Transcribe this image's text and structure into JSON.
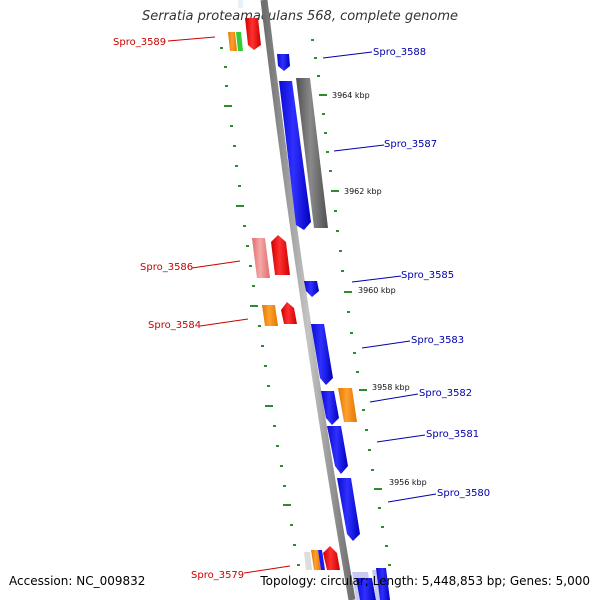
{
  "title": "Serratia proteamaculans 568, complete genome",
  "footer": {
    "accession": "Accession: NC_009832",
    "summary": "Topology: circular; Length: 5,448,853 bp; Genes: 5,000"
  },
  "colors": {
    "backbone": "#8c8c8c",
    "tick": "#2e8b2e",
    "reverse_label": "#cc0000",
    "forward_label": "#0000aa",
    "blue": "#1010ee",
    "red": "#ee1111",
    "pink": "#ee8888",
    "orange": "#ff8c00",
    "green": "#33cc33",
    "gray": "#6e6e6e",
    "lavender": "#c8c8f0"
  },
  "scale_labels": [
    {
      "text": "3964 kbp"
    },
    {
      "text": "3962 kbp"
    },
    {
      "text": "3960 kbp"
    },
    {
      "text": "3958 kbp"
    },
    {
      "text": "3956 kbp"
    }
  ],
  "gene_labels": [
    {
      "text": "Spro_3589",
      "strand": "reverse"
    },
    {
      "text": "Spro_3588",
      "strand": "forward"
    },
    {
      "text": "Spro_3587",
      "strand": "forward"
    },
    {
      "text": "Spro_3586",
      "strand": "reverse"
    },
    {
      "text": "Spro_3585",
      "strand": "forward"
    },
    {
      "text": "Spro_3584",
      "strand": "reverse"
    },
    {
      "text": "Spro_3583",
      "strand": "forward"
    },
    {
      "text": "Spro_3582",
      "strand": "forward"
    },
    {
      "text": "Spro_3581",
      "strand": "forward"
    },
    {
      "text": "Spro_3580",
      "strand": "forward"
    },
    {
      "text": "Spro_3579",
      "strand": "reverse"
    }
  ]
}
